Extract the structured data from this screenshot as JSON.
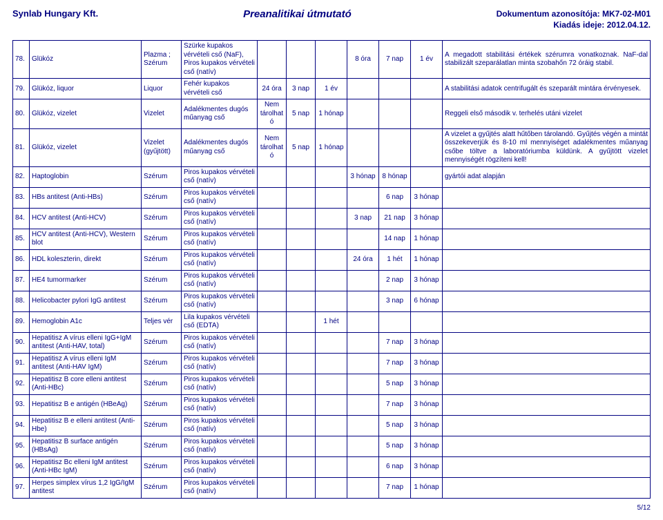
{
  "header": {
    "company": "Synlab Hungary Kft.",
    "title": "Preanalitikai útmutató",
    "doc_id_label": "Dokumentum azonosítója: MK7-02-M01",
    "issue_label": "Kiadás ideje: 2012.04.12."
  },
  "rows": [
    {
      "n": "78.",
      "name": "Glükóz",
      "spec": "Plazma ; Szérum",
      "tube": "Szürke kupakos vérvételi cső (NaF), Piros kupakos vérvételi cső (natív)",
      "c5": "",
      "c6": "",
      "c7": "",
      "c8": "8 óra",
      "c9": "7 nap",
      "c10": "1 év",
      "note": "A megadott stabilitási értékek szérumra vonatkoznak. NaF-dal stabilizált szeparálatlan minta szobahőn 72 óráig stabil."
    },
    {
      "n": "79.",
      "name": "Glükóz, liquor",
      "spec": "Liquor",
      "tube": "Fehér kupakos vérvételi cső",
      "c5": "24 óra",
      "c6": "3 nap",
      "c7": "1 év",
      "c8": "",
      "c9": "",
      "c10": "",
      "note": "A stabilitási adatok centrifugált és szeparált mintára érvényesek."
    },
    {
      "n": "80.",
      "name": "Glükóz, vizelet",
      "spec": "Vizelet",
      "tube": "Adalékmentes dugós műanyag cső",
      "c5": "Nem tárolható",
      "c6": "5 nap",
      "c7": "1 hónap",
      "c8": "",
      "c9": "",
      "c10": "",
      "note": "Reggeli első második v. terhelés utáni vizelet"
    },
    {
      "n": "81.",
      "name": "Glükóz, vizelet",
      "spec": "Vizelet (gyűjtött)",
      "tube": "Adalékmentes dugós műanyag cső",
      "c5": "Nem tárolható",
      "c6": "5 nap",
      "c7": "1 hónap",
      "c8": "",
      "c9": "",
      "c10": "",
      "note": "A vizelet a gyűjtés alatt hűtőben tárolandó. Gyűjtés végén a mintát összekeverjük és 8-10 ml mennyiséget adalékmentes műanyag csőbe töltve a laboratóriumba küldünk. A gyűjtött vizelet mennyiségét rögzíteni kell!"
    },
    {
      "n": "82.",
      "name": "Haptoglobin",
      "spec": "Szérum",
      "tube": "Piros kupakos vérvételi cső (natív)",
      "c5": "",
      "c6": "",
      "c7": "",
      "c8": "3 hónap",
      "c9": "8 hónap",
      "c10": "",
      "note": "gyártói adat alapján"
    },
    {
      "n": "83.",
      "name": "HBs antitest (Anti-HBs)",
      "spec": "Szérum",
      "tube": "Piros kupakos vérvételi cső (natív)",
      "c5": "",
      "c6": "",
      "c7": "",
      "c8": "",
      "c9": "6 nap",
      "c10": "3 hónap",
      "note": ""
    },
    {
      "n": "84.",
      "name": "HCV antitest (Anti-HCV)",
      "spec": "Szérum",
      "tube": "Piros kupakos vérvételi cső (natív)",
      "c5": "",
      "c6": "",
      "c7": "",
      "c8": "3 nap",
      "c9": "21 nap",
      "c10": "3 hónap",
      "note": ""
    },
    {
      "n": "85.",
      "name": "HCV antitest (Anti-HCV), Western blot",
      "spec": "Szérum",
      "tube": "Piros kupakos vérvételi cső (natív)",
      "c5": "",
      "c6": "",
      "c7": "",
      "c8": "",
      "c9": "14 nap",
      "c10": "1 hónap",
      "note": ""
    },
    {
      "n": "86.",
      "name": "HDL koleszterin, direkt",
      "spec": "Szérum",
      "tube": "Piros kupakos vérvételi cső (natív)",
      "c5": "",
      "c6": "",
      "c7": "",
      "c8": "24 óra",
      "c9": "1 hét",
      "c10": "1 hónap",
      "note": ""
    },
    {
      "n": "87.",
      "name": "HE4 tumormarker",
      "spec": "Szérum",
      "tube": "Piros kupakos vérvételi cső (natív)",
      "c5": "",
      "c6": "",
      "c7": "",
      "c8": "",
      "c9": "2 nap",
      "c10": "3 hónap",
      "note": ""
    },
    {
      "n": "88.",
      "name": "Helicobacter pylori IgG antitest",
      "spec": "Szérum",
      "tube": "Piros kupakos vérvételi cső (natív)",
      "c5": "",
      "c6": "",
      "c7": "",
      "c8": "",
      "c9": "3 nap",
      "c10": "6 hónap",
      "note": ""
    },
    {
      "n": "89.",
      "name": "Hemoglobin A1c",
      "spec": "Teljes vér",
      "tube": "Lila kupakos vérvételi cső (EDTA)",
      "c5": "",
      "c6": "",
      "c7": "1 hét",
      "c8": "",
      "c9": "",
      "c10": "",
      "note": ""
    },
    {
      "n": "90.",
      "name": "Hepatitisz A vírus elleni IgG+IgM antitest (Anti-HAV, total)",
      "spec": "Szérum",
      "tube": "Piros kupakos vérvételi cső (natív)",
      "c5": "",
      "c6": "",
      "c7": "",
      "c8": "",
      "c9": "7 nap",
      "c10": "3 hónap",
      "note": ""
    },
    {
      "n": "91.",
      "name": "Hepatitisz A vírus elleni IgM antitest (Anti-HAV IgM)",
      "spec": "Szérum",
      "tube": "Piros kupakos vérvételi cső (natív)",
      "c5": "",
      "c6": "",
      "c7": "",
      "c8": "",
      "c9": "7 nap",
      "c10": "3 hónap",
      "note": ""
    },
    {
      "n": "92.",
      "name": "Hepatitisz B core elleni antitest (Anti-HBc)",
      "spec": "Szérum",
      "tube": "Piros kupakos vérvételi cső (natív)",
      "c5": "",
      "c6": "",
      "c7": "",
      "c8": "",
      "c9": "5 nap",
      "c10": "3 hónap",
      "note": ""
    },
    {
      "n": "93.",
      "name": "Hepatitisz B e antigén (HBeAg)",
      "spec": "Szérum",
      "tube": "Piros kupakos vérvételi cső (natív)",
      "c5": "",
      "c6": "",
      "c7": "",
      "c8": "",
      "c9": "7 nap",
      "c10": "3 hónap",
      "note": ""
    },
    {
      "n": "94.",
      "name": "Hepatitisz B e elleni antitest (Anti-Hbe)",
      "spec": "Szérum",
      "tube": "Piros kupakos vérvételi cső (natív)",
      "c5": "",
      "c6": "",
      "c7": "",
      "c8": "",
      "c9": "5 nap",
      "c10": "3 hónap",
      "note": ""
    },
    {
      "n": "95.",
      "name": "Hepatitisz B surface antigén (HBsAg)",
      "spec": "Szérum",
      "tube": "Piros kupakos vérvételi cső (natív)",
      "c5": "",
      "c6": "",
      "c7": "",
      "c8": "",
      "c9": "5 nap",
      "c10": "3 hónap",
      "note": ""
    },
    {
      "n": "96.",
      "name": "Hepatitisz Bc elleni IgM antitest (Anti-HBc IgM)",
      "spec": "Szérum",
      "tube": "Piros kupakos vérvételi cső (natív)",
      "c5": "",
      "c6": "",
      "c7": "",
      "c8": "",
      "c9": "6 nap",
      "c10": "3 hónap",
      "note": ""
    },
    {
      "n": "97.",
      "name": "Herpes simplex vírus 1,2 IgG/IgM antitest",
      "spec": "Szérum",
      "tube": "Piros kupakos vérvételi cső (natív)",
      "c5": "",
      "c6": "",
      "c7": "",
      "c8": "",
      "c9": "7 nap",
      "c10": "1 hónap",
      "note": ""
    }
  ],
  "footer": {
    "page": "5/12"
  },
  "colors": {
    "text": "#000080",
    "border": "#000080",
    "bg": "#ffffff"
  }
}
